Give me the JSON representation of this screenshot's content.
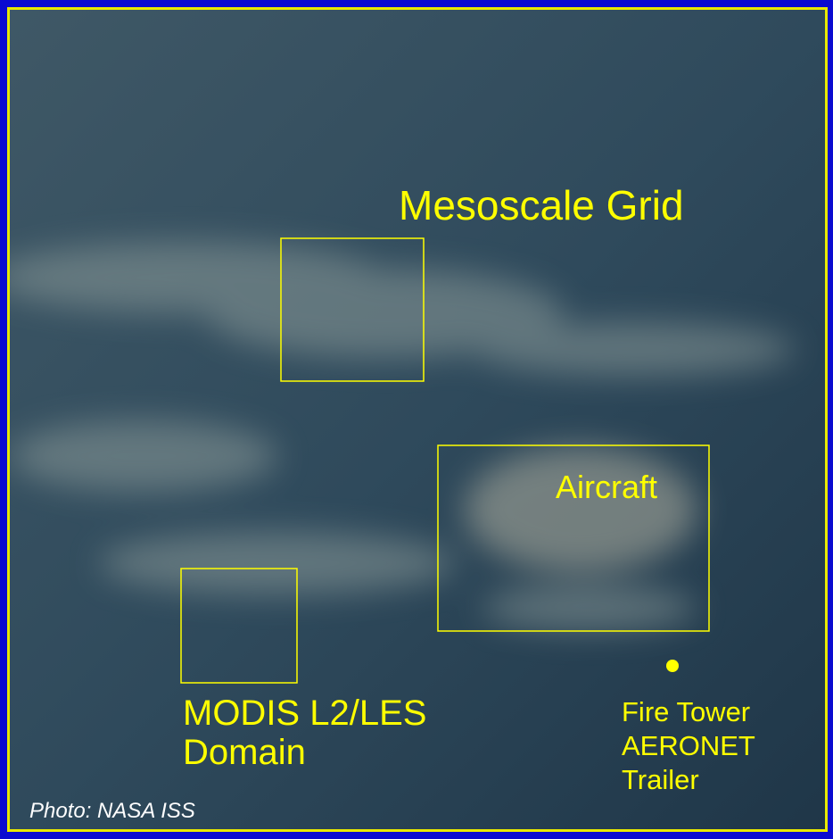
{
  "labels": {
    "mesoscale": "Mesoscale Grid",
    "aircraft": "Aircraft",
    "modis": [
      "MODIS L2/LES",
      "Domain"
    ],
    "fire": [
      "Fire Tower",
      "AERONET",
      "Trailer"
    ],
    "credit": "Photo: NASA ISS"
  }
}
